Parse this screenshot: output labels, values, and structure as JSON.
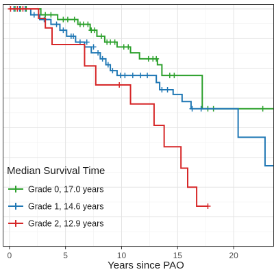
{
  "chart_data": {
    "type": "line",
    "title": "",
    "xlabel": "Years since PAO",
    "ylabel": "",
    "xlim": [
      -0.6,
      23.6
    ],
    "ylim": [
      0,
      1.02
    ],
    "xticks": [
      0,
      5,
      10,
      15,
      20
    ],
    "grid": true,
    "legend": {
      "title": "Median Survival Time",
      "placement": "bottom-left"
    },
    "series": [
      {
        "name": "Grade 0, 17.0 years",
        "color": "#2ca02c",
        "step_x": [
          0,
          2.8,
          4.3,
          6.1,
          7.2,
          7.8,
          8.5,
          9.6,
          10.8,
          11.6,
          13.2,
          13.6,
          17.2,
          23.6
        ],
        "step_y": [
          1.0,
          0.975,
          0.955,
          0.935,
          0.91,
          0.885,
          0.86,
          0.84,
          0.815,
          0.79,
          0.765,
          0.72,
          0.58,
          0.58
        ],
        "censor_x": [
          0.5,
          1.0,
          1.5,
          3.2,
          3.7,
          4.8,
          5.2,
          5.8,
          6.3,
          6.6,
          7.0,
          7.3,
          7.6,
          8.2,
          8.7,
          9.0,
          9.4,
          10.2,
          10.6,
          12.4,
          12.8,
          13.1,
          14.3,
          14.7,
          17.7,
          18.2,
          22.6
        ],
        "censor_y": [
          1.0,
          1.0,
          1.0,
          0.975,
          0.975,
          0.955,
          0.955,
          0.955,
          0.935,
          0.935,
          0.935,
          0.91,
          0.91,
          0.885,
          0.86,
          0.86,
          0.86,
          0.84,
          0.84,
          0.79,
          0.79,
          0.79,
          0.72,
          0.72,
          0.58,
          0.58,
          0.58
        ]
      },
      {
        "name": "Grade 1, 14.6 years",
        "color": "#1f77b4",
        "step_x": [
          0,
          1.9,
          2.7,
          3.7,
          4.5,
          5.1,
          5.9,
          6.7,
          7.3,
          8.1,
          8.6,
          9.0,
          9.6,
          13.1,
          13.4,
          14.6,
          15.4,
          16.2,
          20.4,
          22.8,
          23.6
        ],
        "step_y": [
          1.0,
          0.975,
          0.955,
          0.935,
          0.91,
          0.885,
          0.86,
          0.84,
          0.815,
          0.79,
          0.765,
          0.74,
          0.72,
          0.69,
          0.66,
          0.64,
          0.61,
          0.58,
          0.46,
          0.34,
          0.34
        ],
        "censor_x": [
          0.4,
          0.9,
          1.4,
          2.2,
          3.1,
          4.2,
          4.8,
          5.5,
          5.7,
          6.3,
          6.9,
          7.5,
          7.9,
          8.3,
          8.8,
          9.2,
          9.9,
          10.3,
          11.0,
          11.7,
          12.3,
          13.6,
          14.1,
          16.3,
          17.1
        ],
        "censor_y": [
          1.0,
          1.0,
          1.0,
          0.975,
          0.955,
          0.935,
          0.91,
          0.885,
          0.885,
          0.86,
          0.86,
          0.84,
          0.815,
          0.79,
          0.765,
          0.74,
          0.72,
          0.72,
          0.72,
          0.72,
          0.72,
          0.66,
          0.66,
          0.58,
          0.58
        ]
      },
      {
        "name": "Grade 2, 12.9 years",
        "color": "#d62728",
        "step_x": [
          0,
          2.6,
          3.2,
          3.8,
          6.7,
          7.7,
          10.8,
          12.9,
          13.8,
          15.3,
          15.9,
          16.7,
          17.7
        ],
        "step_y": [
          1.0,
          0.96,
          0.92,
          0.85,
          0.76,
          0.68,
          0.6,
          0.51,
          0.42,
          0.33,
          0.25,
          0.17,
          0.17
        ],
        "censor_x": [
          0.1,
          0.7,
          1.2,
          9.8,
          17.7
        ],
        "censor_y": [
          1.0,
          1.0,
          1.0,
          0.68,
          0.17
        ]
      }
    ]
  }
}
